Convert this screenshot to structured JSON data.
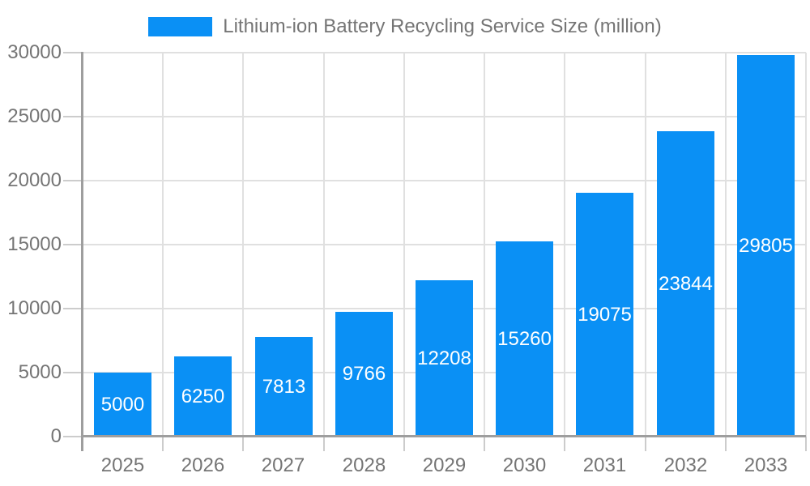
{
  "chart_data": {
    "type": "bar",
    "title": "Lithium-ion Battery Recycling Service Size (million)",
    "series_name": "Lithium-ion Battery Recycling Service Size (million)",
    "categories": [
      "2025",
      "2026",
      "2027",
      "2028",
      "2029",
      "2030",
      "2031",
      "2032",
      "2033"
    ],
    "values": [
      5000,
      6250,
      7813,
      9766,
      12208,
      15260,
      19075,
      23844,
      29805
    ],
    "value_labels": [
      "5000",
      "6250",
      "7813",
      "9766",
      "12208",
      "15260",
      "19075",
      "23844",
      "29805"
    ],
    "xlabel": "",
    "ylabel": "",
    "ylim": [
      0,
      30000
    ],
    "ytick_interval": 5000,
    "yticks": [
      0,
      5000,
      10000,
      15000,
      20000,
      25000,
      30000
    ],
    "ytick_labels": [
      "0",
      "5000",
      "10000",
      "15000",
      "20000",
      "25000",
      "30000"
    ],
    "grid": true,
    "grid_vertical": true,
    "legend_position": "top-center",
    "value_labels_position": "inside-center",
    "colors": {
      "bar": "#0A90F5",
      "value_label": "#FFFFFF",
      "gridline": "#E0E0E0",
      "tick": "#CCCCCC",
      "axis_line": "#9E9E9E",
      "axis_label": "#757575",
      "background": "#FFFFFF"
    }
  }
}
